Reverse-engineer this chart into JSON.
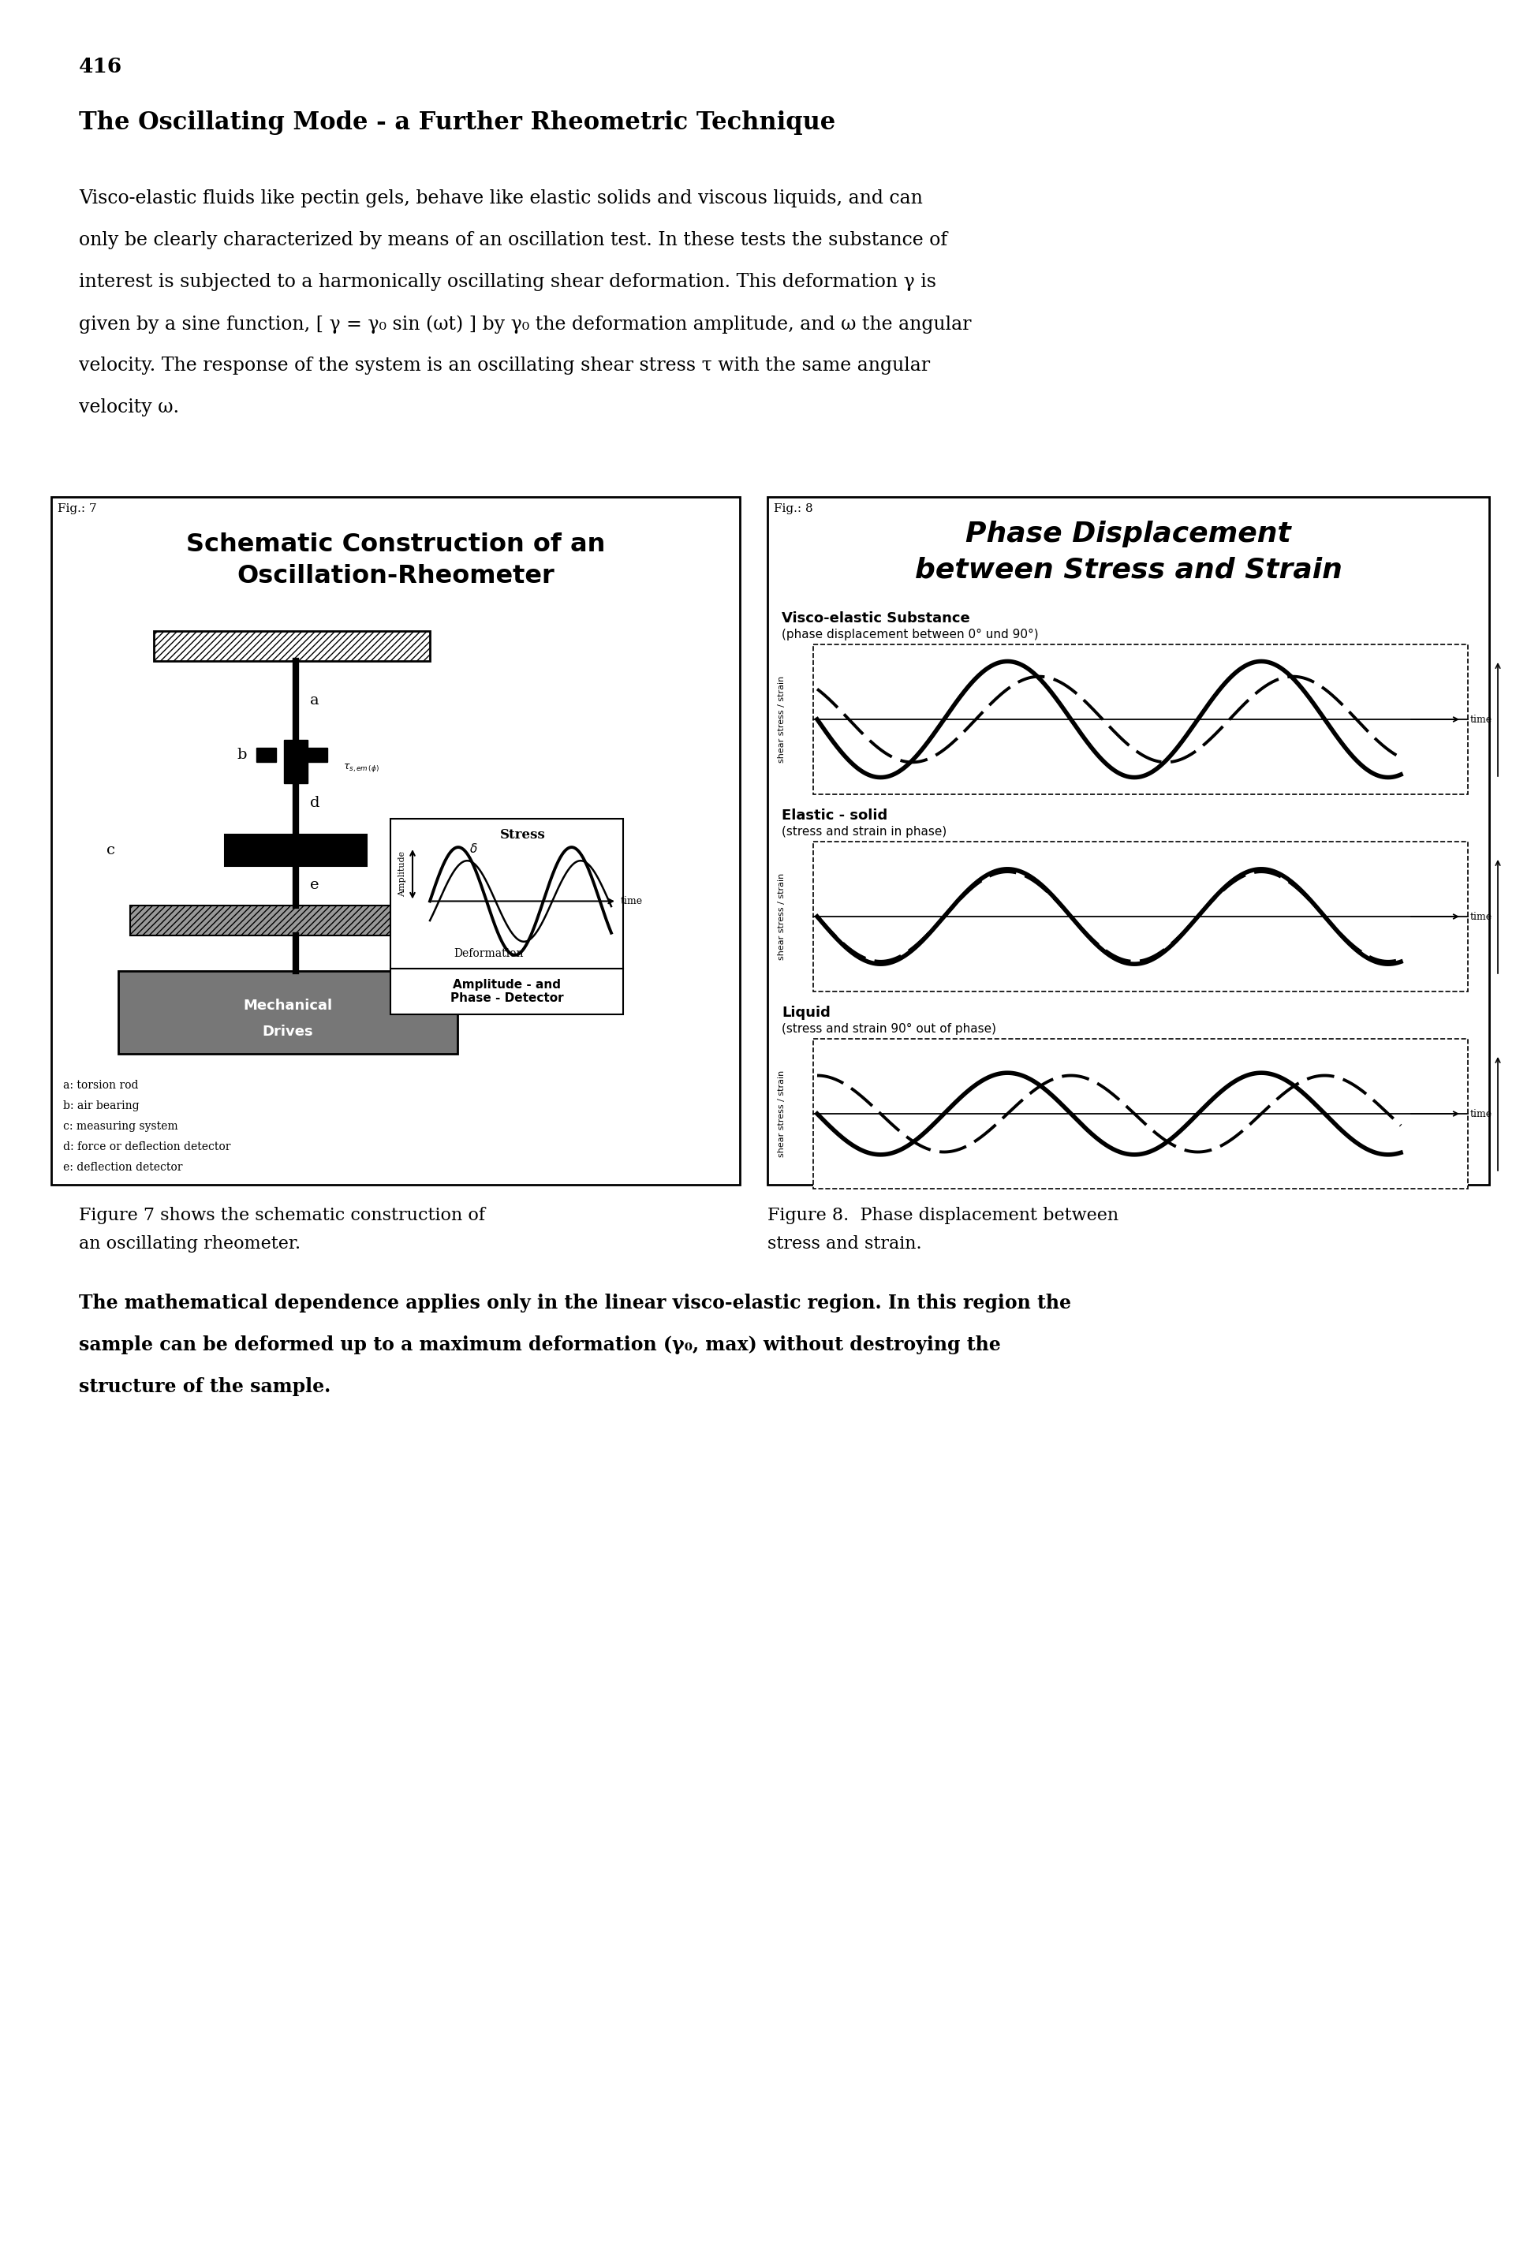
{
  "page_number": "416",
  "section_title": "The Oscillating Mode - a Further Rheometric Technique",
  "body_lines": [
    "Visco-elastic fluids like pectin gels, behave like elastic solids and viscous liquids, and can",
    "only be clearly characterized by means of an oscillation test. In these tests the substance of",
    "interest is subjected to a harmonically oscillating shear deformation. This deformation γ is",
    "given by a sine function, [ γ = γ₀ sin (ωt) ] by γ₀ the deformation amplitude, and ω the angular",
    "velocity. The response of the system is an oscillating shear stress τ with the same angular",
    "velocity ω."
  ],
  "fig7_label": "Fig.: 7",
  "fig7_title1": "Schematic Construction of an",
  "fig7_title2": "Oscillation-Rheometer",
  "fig8_label": "Fig.: 8",
  "fig8_title1": "Phase Displacement",
  "fig8_title2": "between Stress and Strain",
  "panel_titles": [
    "Visco-elastic Substance",
    "Elastic - solid",
    "Liquid"
  ],
  "panel_subs": [
    "(phase displacement between 0° und 90°)",
    "(stress and strain in phase)",
    "(stress and strain 90° out of phase)"
  ],
  "panel_phases": [
    0.7854,
    0.0,
    1.5708
  ],
  "panel_amp1": [
    0.88,
    0.72,
    0.62
  ],
  "panel_amp2": [
    0.65,
    0.68,
    0.58
  ],
  "fig7_legend": [
    "a: torsion rod",
    "b: air bearing",
    "c: measuring system",
    "d: force or deflection detector",
    "e: deflection detector"
  ],
  "caption_left1": "Figure 7 shows the schematic construction of",
  "caption_left2": "an oscillating rheometer.",
  "caption_right1": "Figure 8.  Phase displacement between",
  "caption_right2": "stress and strain.",
  "bottom_lines": [
    "The mathematical dependence applies only in the linear visco-elastic region. In this region the",
    "sample can be deformed up to a maximum deformation (γ₀, max) without destroying the",
    "structure of the sample."
  ],
  "bg": "#ffffff",
  "black": "#000000"
}
